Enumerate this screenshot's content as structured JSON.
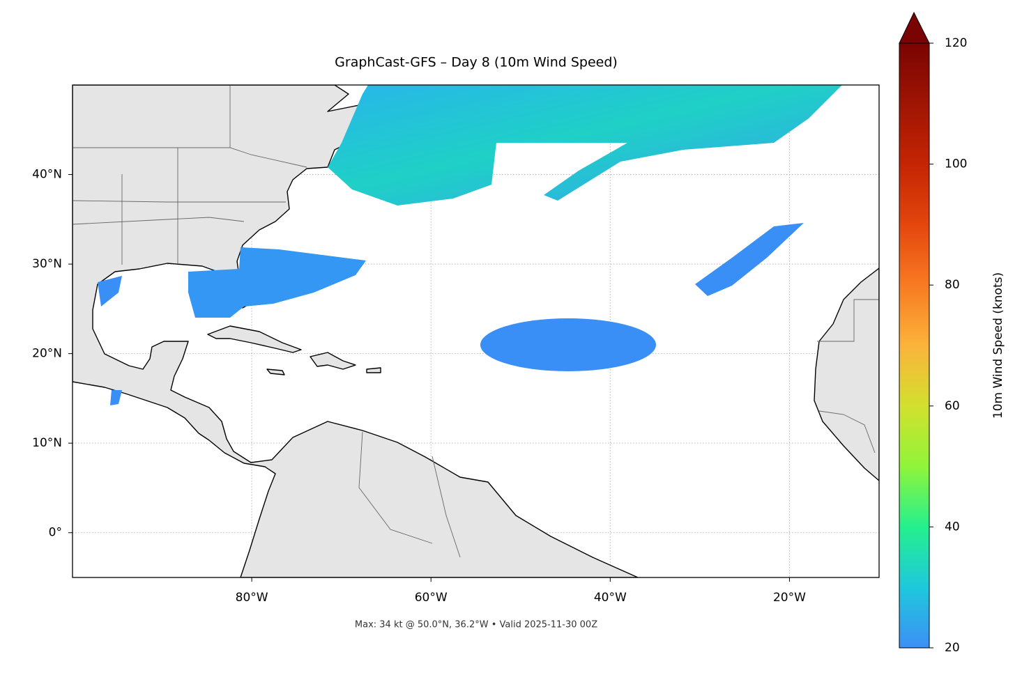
{
  "chart_data": {
    "type": "map",
    "title": "GraphCast-GFS – Day 8 (10m Wind Speed)",
    "footnote": "Max: 34 kt @ 50.0°N, 36.2°W • Valid 2025-11-30 00Z",
    "xlim": [
      -100,
      -10
    ],
    "ylim": [
      -5,
      50
    ],
    "xticks": [
      {
        "value": -80,
        "label": "80°W"
      },
      {
        "value": -60,
        "label": "60°W"
      },
      {
        "value": -40,
        "label": "40°W"
      },
      {
        "value": -20,
        "label": "20°W"
      }
    ],
    "yticks": [
      {
        "value": 0,
        "label": "0°"
      },
      {
        "value": 10,
        "label": "10°N"
      },
      {
        "value": 20,
        "label": "20°N"
      },
      {
        "value": 30,
        "label": "30°N"
      },
      {
        "value": 40,
        "label": "40°N"
      }
    ],
    "grid": true,
    "colorbar": {
      "label": "10m Wind Speed (knots)",
      "lim": [
        20,
        120
      ],
      "ticks": [
        20,
        40,
        60,
        80,
        100,
        120
      ],
      "extend": "max"
    }
  }
}
